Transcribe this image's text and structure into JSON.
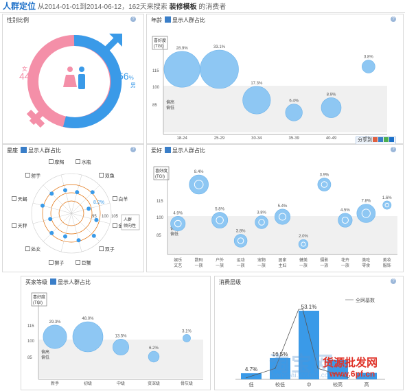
{
  "header": {
    "title": "人群定位",
    "subtitle": "从2014-01-01到2014-06-12，162天来搜索",
    "highlight": "装修模板",
    "suffix": "的消费者"
  },
  "gender": {
    "title": "性别比例",
    "female_label": "女",
    "female_pct": "44",
    "male_label": "男",
    "male_pct": "56",
    "pct_sign": "%",
    "help": "?"
  },
  "age": {
    "title": "年龄",
    "toggle": "显示人群占比",
    "help": "?",
    "tgi_label": "喜好度(TGI)",
    "bias_label": "偏高偏低",
    "yticks": [
      "115",
      "100",
      "85"
    ],
    "categories": [
      "18-24",
      "25-29",
      "30-34",
      "35-39",
      "40-49",
      "50+"
    ],
    "percents": [
      "28.9%",
      "33.1%",
      "17.3%",
      "6.4%",
      "8.9%",
      "3.8%"
    ]
  },
  "share": {
    "label": "分享到"
  },
  "constellation": {
    "title": "星座",
    "toggle": "显示人群占比",
    "help": "?",
    "signs": [
      "水瓶",
      "双鱼",
      "白羊",
      "金牛",
      "双子",
      "巨蟹",
      "狮子",
      "处女",
      "天秤",
      "天蝎",
      "射手",
      "摩羯"
    ],
    "rings": [
      "95",
      "100",
      "105"
    ],
    "highlight_val": "8.2%",
    "axis_label": "人群倾向性"
  },
  "hobby": {
    "title": "爱好",
    "toggle": "显示人群占比",
    "help": "?",
    "tgi_label": "喜好度(TGI)",
    "bias_label": "偏高偏低",
    "yticks": [
      "115",
      "100",
      "85"
    ],
    "categories": [
      "娱乐文艺",
      "数码一族",
      "户外一族",
      "运动一族",
      "宠物一族",
      "居家主妇",
      "健美一族",
      "摄影一族",
      "花卉一族",
      "美吃零食",
      "美妆服饰"
    ],
    "percents": [
      "4.9%",
      "8.4%",
      "5.8%",
      "3.8%",
      "3.8%",
      "5.4%",
      "2.0%",
      "3.9%",
      "4.5%",
      "7.8%",
      "1.6%"
    ]
  },
  "buyer": {
    "title": "买家等级",
    "toggle": "显示人群占比",
    "help": "?",
    "tgi_label": "喜好度(TGI)",
    "bias_label": "偏高偏低",
    "yticks": [
      "115",
      "100",
      "85"
    ],
    "categories": [
      "新手",
      "初级",
      "中级",
      "资深级",
      "骨灰级"
    ],
    "percents": [
      "29.3%",
      "48.0%",
      "13.5%",
      "6.2%",
      "3.1%"
    ]
  },
  "consume": {
    "title": "消费层级",
    "legend": "全网基数",
    "help": "?",
    "percents": [
      "4.7%",
      "16.5%",
      "53.1%",
      "",
      ""
    ],
    "categories": [
      "低",
      "较低",
      "中",
      "较高",
      "高"
    ]
  },
  "watermark": {
    "line1": "货源批发网",
    "line2": "www.6pf.cn",
    "logo": "淘宝网",
    "logo_sub": "bangpai.taobao.com"
  }
}
